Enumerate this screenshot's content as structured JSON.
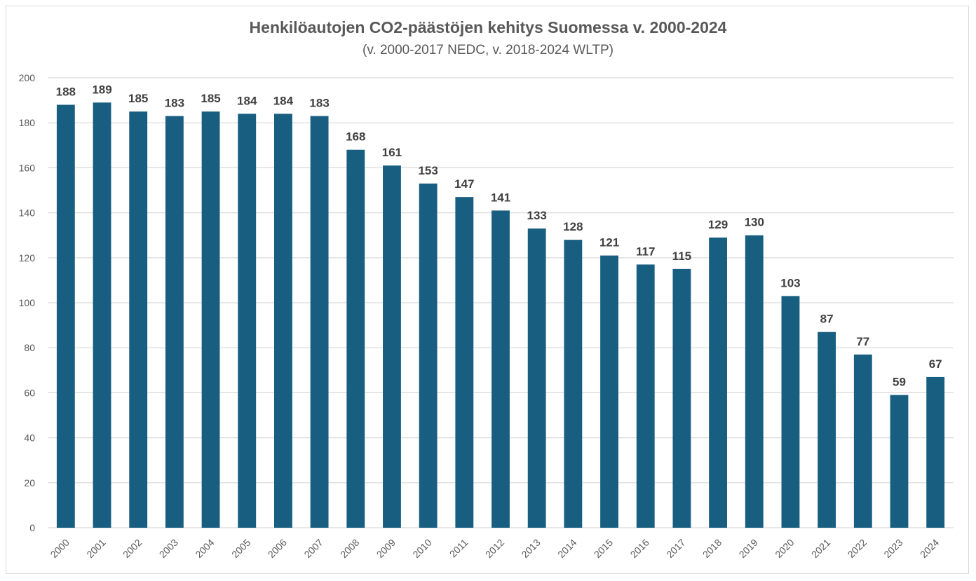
{
  "chart_data": {
    "type": "bar",
    "title": "Henkilöautojen CO2-päästöjen kehitys Suomessa v. 2000-2024",
    "subtitle": "(v. 2000-2017 NEDC, v. 2018-2024 WLTP)",
    "xlabel": "",
    "ylabel": "",
    "categories": [
      "2000",
      "2001",
      "2002",
      "2003",
      "2004",
      "2005",
      "2006",
      "2007",
      "2008",
      "2009",
      "2010",
      "2011",
      "2012",
      "2013",
      "2014",
      "2015",
      "2016",
      "2017",
      "2018",
      "2019",
      "2020",
      "2021",
      "2022",
      "2023",
      "2024"
    ],
    "values": [
      188,
      189,
      185,
      183,
      185,
      184,
      184,
      183,
      168,
      161,
      153,
      147,
      141,
      133,
      128,
      121,
      117,
      115,
      129,
      130,
      103,
      87,
      77,
      59,
      67
    ],
    "data_labels": [
      "188",
      "189",
      "185",
      "183",
      "185",
      "184",
      "184",
      "183",
      "168",
      "161",
      "153",
      "147",
      "141",
      "133",
      "128",
      "121",
      "117",
      "115",
      "129",
      "130",
      "103",
      "87",
      "77",
      "59",
      "67"
    ],
    "ylim": [
      0,
      200
    ],
    "yticks": [
      0,
      20,
      40,
      60,
      80,
      100,
      120,
      140,
      160,
      180,
      200
    ],
    "grid": true,
    "legend": "none",
    "colors": {
      "bar": "#185E80",
      "grid": "#d9d9d9",
      "axis_text": "#595959",
      "data_label": "#404040"
    }
  }
}
